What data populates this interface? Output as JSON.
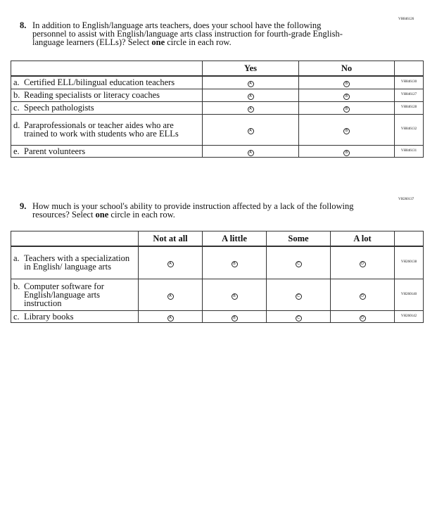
{
  "q8": {
    "code": "VH846126",
    "number": "8.",
    "text_before": "In addition to English/language arts teachers, does your school have the following personnel to assist with English/language arts class instruction for fourth-grade English-language learners (ELLs)? Select ",
    "text_bold": "one",
    "text_after": " circle in each row.",
    "columns": [
      "Yes",
      "No"
    ],
    "bubbles": [
      "A",
      "B"
    ],
    "rows": [
      {
        "letter": "a.",
        "label": "Certified ELL/bilingual education teachers",
        "code": "VH846130"
      },
      {
        "letter": "b.",
        "label": "Reading specialists or literacy coaches",
        "code": "VH846127"
      },
      {
        "letter": "c.",
        "label": "Speech pathologists",
        "code": "VH846128"
      },
      {
        "letter": "d.",
        "label": "Paraprofessionals or teacher aides who are trained to work with students who are ELLs",
        "code": "VH846132"
      },
      {
        "letter": "e.",
        "label": "Parent volunteers",
        "code": "VH846131"
      }
    ]
  },
  "q9": {
    "code": "VH260137",
    "number": "9.",
    "text_before": "How much is your school's ability to provide instruction affected by a lack of the following resources? Select ",
    "text_bold": "one",
    "text_after": " circle in each row.",
    "columns": [
      "Not at all",
      "A little",
      "Some",
      "A lot"
    ],
    "bubbles": [
      "A",
      "B",
      "C",
      "D"
    ],
    "rows": [
      {
        "letter": "a.",
        "label": "Teachers with a specialization in English/ language arts",
        "code": "VH260138"
      },
      {
        "letter": "b.",
        "label": "Computer software for English/language arts instruction",
        "code": "VH260140"
      },
      {
        "letter": "c.",
        "label": "Library books",
        "code": "VH260142"
      }
    ]
  }
}
